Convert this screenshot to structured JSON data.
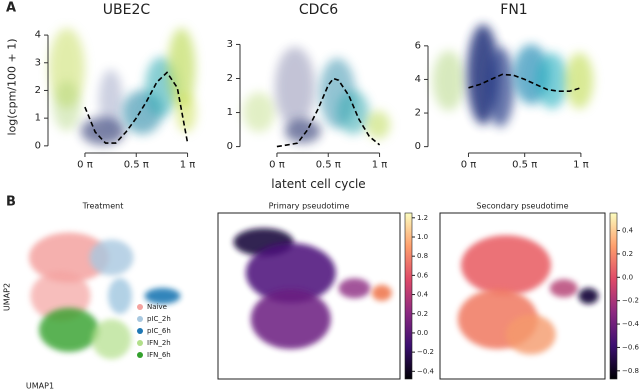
{
  "panel_labels": [
    "A",
    "B"
  ],
  "chart_data": [
    {
      "type": "line",
      "title": "UBE2C",
      "ylabel": "log(cpm/100 + 1)",
      "color": "#000000",
      "line_style": "dashed",
      "x": [
        0,
        0.1,
        0.2,
        0.3,
        0.4,
        0.5,
        0.6,
        0.7,
        0.8,
        0.9,
        1.0
      ],
      "values": [
        1.4,
        0.5,
        0.1,
        0.1,
        0.5,
        1.0,
        1.6,
        2.3,
        2.65,
        2.1,
        0.1
      ],
      "xlim": [
        -0.36,
        1.17
      ],
      "ylim": [
        -0.15,
        4.4
      ],
      "xticks": [
        {
          "value": 0,
          "label": "0 π"
        },
        {
          "value": 0.5,
          "label": "0.5 π"
        },
        {
          "value": 1,
          "label": "1 π"
        }
      ],
      "yticks": [
        0,
        1,
        2,
        3,
        4
      ]
    },
    {
      "type": "line",
      "title": "CDC6",
      "xlabel": "latent cell cycle",
      "color": "#000000",
      "line_style": "dashed",
      "x": [
        0,
        0.1,
        0.2,
        0.3,
        0.4,
        0.5,
        0.55,
        0.6,
        0.7,
        0.8,
        0.9,
        1.0
      ],
      "values": [
        0,
        0.05,
        0.1,
        0.5,
        1.1,
        1.8,
        2.0,
        1.95,
        1.5,
        0.8,
        0.3,
        0.05
      ],
      "xlim": [
        -0.36,
        1.17
      ],
      "ylim": [
        -0.1,
        3.6
      ],
      "xticks": [
        {
          "value": 0,
          "label": "0 π"
        },
        {
          "value": 0.5,
          "label": "0.5 π"
        },
        {
          "value": 1,
          "label": "1 π"
        }
      ],
      "yticks": [
        0,
        1,
        2,
        3
      ]
    },
    {
      "type": "line",
      "title": "FN1",
      "color": "#000000",
      "line_style": "dashed",
      "x": [
        0,
        0.1,
        0.2,
        0.3,
        0.4,
        0.5,
        0.6,
        0.7,
        0.8,
        0.9,
        1.0
      ],
      "values": [
        3.5,
        3.7,
        4.0,
        4.3,
        4.25,
        4.0,
        3.7,
        3.4,
        3.3,
        3.3,
        3.5
      ],
      "xlim": [
        -0.36,
        1.17
      ],
      "ylim": [
        -0.2,
        7.3
      ],
      "xticks": [
        {
          "value": 0,
          "label": "0 π"
        },
        {
          "value": 0.5,
          "label": "0.5 π"
        },
        {
          "value": 1,
          "label": "1 π"
        }
      ],
      "yticks": [
        0,
        2,
        4,
        6
      ]
    },
    {
      "type": "scatter",
      "title": "Treatment",
      "xlabel": "UMAP1",
      "ylabel": "UMAP2",
      "legend": "lower right",
      "series": [
        {
          "name": "Naive",
          "color": "#f4a3a0"
        },
        {
          "name": "pIC_2h",
          "color": "#a8c8e0"
        },
        {
          "name": "pIC_6h",
          "color": "#1f78b4"
        },
        {
          "name": "IFN_2h",
          "color": "#b2df8a"
        },
        {
          "name": "IFN_6h",
          "color": "#33a02c"
        }
      ]
    },
    {
      "type": "scatter",
      "title": "Primary pseudotime",
      "colormap": [
        "#000004",
        "#3b0f70",
        "#8c2981",
        "#de4968",
        "#fe9f6d",
        "#fcfdbf"
      ],
      "clim": [
        -0.48,
        1.25
      ],
      "cticks": [
        {
          "value": -0.4,
          "label": "−0.4"
        },
        {
          "value": -0.2,
          "label": "−0.2"
        },
        {
          "value": 0,
          "label": "0.0"
        },
        {
          "value": 0.2,
          "label": "0.2"
        },
        {
          "value": 0.4,
          "label": "0.4"
        },
        {
          "value": 0.6,
          "label": "0.6"
        },
        {
          "value": 0.8,
          "label": "0.8"
        },
        {
          "value": 1,
          "label": "1.0"
        },
        {
          "value": 1.2,
          "label": "1.2"
        }
      ]
    },
    {
      "type": "scatter",
      "title": "Secondary pseudotime",
      "colormap": [
        "#000004",
        "#3b0f70",
        "#8c2981",
        "#de4968",
        "#fe9f6d",
        "#fcfdbf"
      ],
      "clim": [
        -0.87,
        0.55
      ],
      "cticks": [
        {
          "value": -0.8,
          "label": "−0.8"
        },
        {
          "value": -0.6,
          "label": "−0.6"
        },
        {
          "value": -0.4,
          "label": "−0.4"
        },
        {
          "value": -0.2,
          "label": "−0.2"
        },
        {
          "value": 0,
          "label": "0.0"
        },
        {
          "value": 0.2,
          "label": "0.2"
        },
        {
          "value": 0.4,
          "label": "0.4"
        }
      ]
    }
  ]
}
